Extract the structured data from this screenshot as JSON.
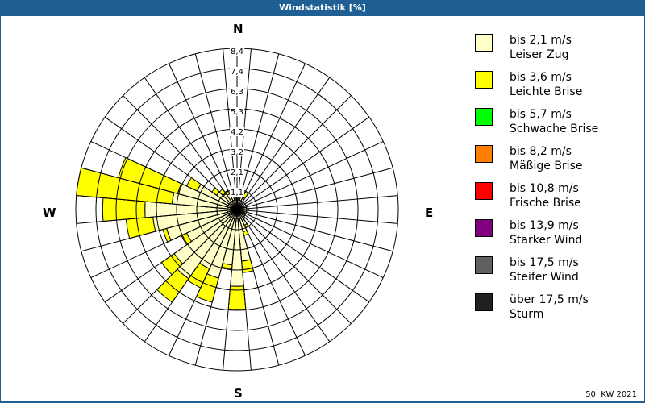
{
  "header": {
    "title": "Windstatistik [%]"
  },
  "compass": {
    "north": "N",
    "east": "E",
    "south": "S",
    "west": "W"
  },
  "footer": {
    "period": "50. KW 2021"
  },
  "colors": {
    "titlebar": "#1f5f94",
    "grid": "#000000"
  },
  "legend": [
    {
      "speed": "bis 2,1 m/s",
      "name": "Leiser Zug",
      "color": "#ffffc8"
    },
    {
      "speed": "bis 3,6 m/s",
      "name": "Leichte Brise",
      "color": "#ffff00"
    },
    {
      "speed": "bis 5,7 m/s",
      "name": "Schwache Brise",
      "color": "#00ff00"
    },
    {
      "speed": "bis 8,2 m/s",
      "name": "Mäßige Brise",
      "color": "#ff8000"
    },
    {
      "speed": "bis 10,8 m/s",
      "name": "Frische Brise",
      "color": "#ff0000"
    },
    {
      "speed": "bis 13,9 m/s",
      "name": "Starker Wind",
      "color": "#800080"
    },
    {
      "speed": "bis 17,5 m/s",
      "name": "Steifer Wind",
      "color": "#606060"
    },
    {
      "speed": "über 17,5 m/s",
      "name": "Sturm",
      "color": "#202020"
    }
  ],
  "chart_data": {
    "type": "wind-rose",
    "title": "Windstatistik [%]",
    "subtitle": "50. KW 2021",
    "unit": "%",
    "ring_labels": [
      "1,1",
      "2,1",
      "3,2",
      "4,2",
      "5,3",
      "6,3",
      "7,4",
      "8,4"
    ],
    "rmax": 8.4,
    "sector_width_deg": 10,
    "directions_deg": [
      0,
      10,
      20,
      30,
      40,
      50,
      60,
      70,
      80,
      90,
      100,
      110,
      120,
      130,
      140,
      150,
      160,
      170,
      180,
      190,
      200,
      210,
      220,
      230,
      240,
      250,
      260,
      270,
      280,
      290,
      300,
      310,
      320,
      330,
      340,
      350
    ],
    "series": [
      {
        "name": "bis 2,1 m/s (Leiser Zug)",
        "values": [
          0.8,
          0.5,
          0.8,
          0.7,
          0.4,
          0.3,
          0.3,
          0.4,
          0.5,
          0.6,
          0.5,
          0.4,
          0.4,
          0.5,
          0.6,
          0.9,
          1.2,
          2.7,
          4.0,
          2.9,
          3.7,
          3.4,
          4.4,
          4.0,
          2.9,
          3.8,
          4.4,
          4.8,
          3.4,
          3.2,
          2.3,
          1.3,
          1.0,
          0.9,
          0.7,
          0.8
        ]
      },
      {
        "name": "bis 3,6 m/s (Leichte Brise)",
        "values": [
          0.0,
          0.0,
          0.2,
          0.3,
          0.0,
          0.0,
          0.0,
          0.0,
          0.0,
          0.0,
          0.0,
          0.0,
          0.0,
          0.0,
          0.0,
          0.1,
          0.2,
          0.6,
          1.2,
          0.2,
          1.3,
          1.1,
          1.5,
          0.8,
          0.3,
          0.2,
          1.4,
          2.2,
          5.0,
          3.2,
          0.6,
          0.3,
          0.3,
          0.2,
          0.0,
          0.0
        ]
      },
      {
        "name": "bis 5,7 m/s (Schwache Brise)",
        "values": []
      },
      {
        "name": "bis 8,2 m/s (Mäßige Brise)",
        "values": []
      },
      {
        "name": "bis 10,8 m/s (Frische Brise)",
        "values": []
      },
      {
        "name": "bis 13,9 m/s (Starker Wind)",
        "values": []
      },
      {
        "name": "bis 17,5 m/s (Steifer Wind)",
        "values": []
      },
      {
        "name": "über 17,5 m/s (Sturm)",
        "values": []
      }
    ],
    "grid": true,
    "legend_position": "right"
  }
}
